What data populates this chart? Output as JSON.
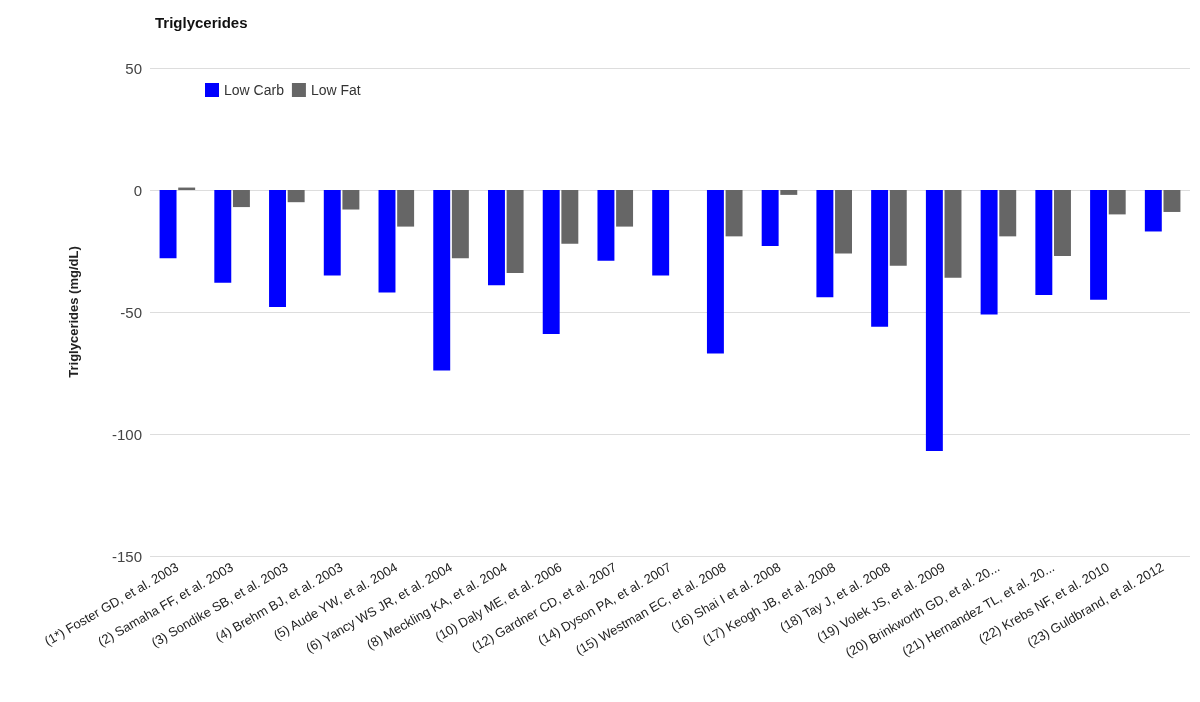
{
  "chart_data": {
    "type": "bar",
    "title": "Triglycerides",
    "ylabel": "Triglycerides (mg/dL)",
    "categories": [
      "(1*) Foster GD, et al. 2003",
      "(2) Samaha FF, et al. 2003",
      "(3) Sondike SB, et al. 2003",
      "(4) Brehm BJ, et al. 2003",
      "(5) Aude YW, et al. 2004",
      "(6) Yancy WS JR, et al. 2004",
      "(8) Meckling KA, et al. 2004",
      "(10) Daly ME, et al. 2006",
      "(12) Gardner CD, et al. 2007",
      "(14) Dyson PA, et al. 2007",
      "(15) Westman EC, et al. 2008",
      "(16) Shai I et al. 2008",
      "(17) Keogh JB, et al. 2008",
      "(18) Tay J, et al. 2008",
      "(19) Volek JS, et al. 2009",
      "(20) Brinkworth GD, et al. 20...",
      "(21) Hernandez TL, et al. 20...",
      "(22) Krebs NF, et al. 2010",
      "(23) Guldbrand, et al. 2012"
    ],
    "series": [
      {
        "name": "Low Carb",
        "color": "#0000ff",
        "values": [
          -28,
          -38,
          -48,
          -35,
          -42,
          -74,
          -39,
          -59,
          -29,
          -35,
          -67,
          -23,
          -44,
          -56,
          -107,
          -51,
          -43,
          -45,
          -17
        ]
      },
      {
        "name": "Low Fat",
        "color": "#666666",
        "values": [
          1,
          -7,
          -5,
          -8,
          -15,
          -28,
          -34,
          -22,
          -15,
          null,
          -19,
          -2,
          -26,
          -31,
          -36,
          -19,
          -27,
          -10,
          -9
        ]
      }
    ],
    "ylim": [
      -150,
      50
    ],
    "yticks": [
      -150,
      -100,
      -50,
      0,
      50
    ],
    "grid": "y",
    "legend": "top left"
  }
}
